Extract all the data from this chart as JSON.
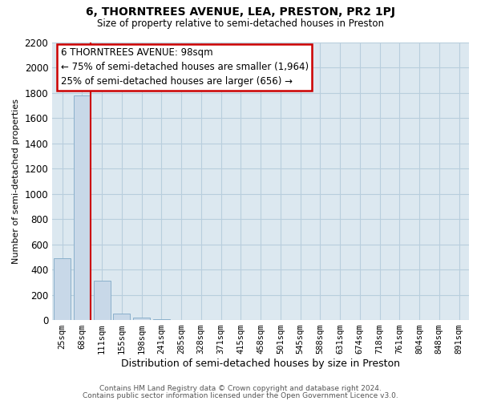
{
  "title": "6, THORNTREES AVENUE, LEA, PRESTON, PR2 1PJ",
  "subtitle": "Size of property relative to semi-detached houses in Preston",
  "xlabel": "Distribution of semi-detached houses by size in Preston",
  "ylabel": "Number of semi-detached properties",
  "bar_labels": [
    "25sqm",
    "68sqm",
    "111sqm",
    "155sqm",
    "198sqm",
    "241sqm",
    "285sqm",
    "328sqm",
    "371sqm",
    "415sqm",
    "458sqm",
    "501sqm",
    "545sqm",
    "588sqm",
    "631sqm",
    "674sqm",
    "718sqm",
    "761sqm",
    "804sqm",
    "848sqm",
    "891sqm"
  ],
  "bar_values": [
    490,
    1775,
    310,
    50,
    20,
    5,
    2,
    0,
    0,
    0,
    0,
    0,
    0,
    0,
    0,
    0,
    0,
    0,
    0,
    0,
    0
  ],
  "bar_color": "#c8d8e8",
  "bar_edge_color": "#8ab0cc",
  "ylim": [
    0,
    2200
  ],
  "yticks": [
    0,
    200,
    400,
    600,
    800,
    1000,
    1200,
    1400,
    1600,
    1800,
    2000,
    2200
  ],
  "property_line_color": "#cc0000",
  "property_bar_index": 1,
  "annotation_title": "6 THORNTREES AVENUE: 98sqm",
  "annotation_line1": "← 75% of semi-detached houses are smaller (1,964)",
  "annotation_line2": "25% of semi-detached houses are larger (656) →",
  "footer1": "Contains HM Land Registry data © Crown copyright and database right 2024.",
  "footer2": "Contains public sector information licensed under the Open Government Licence v3.0.",
  "background_color": "#ffffff",
  "plot_bg_color": "#dce8f0",
  "grid_color": "#b8cedd"
}
